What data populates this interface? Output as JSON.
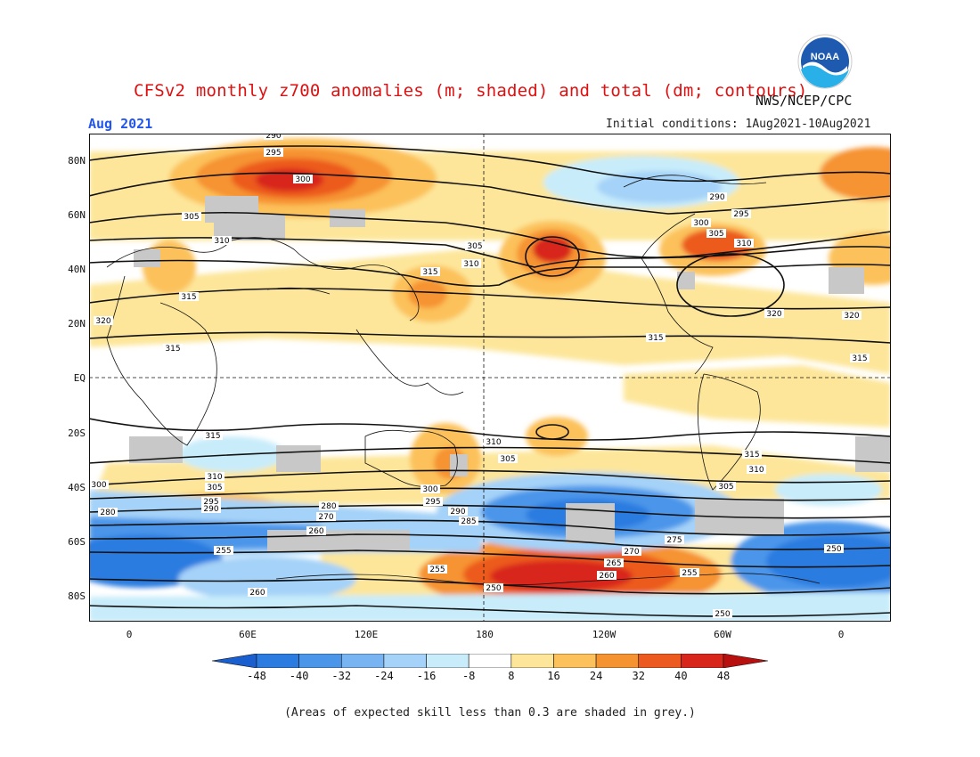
{
  "header": {
    "title": "CFSv2 monthly z700 anomalies (m; shaded) and total (dm; contours)",
    "agency": "NWS/NCEP/CPC",
    "month": "Aug 2021",
    "initial_conditions": "Initial conditions: 1Aug2021-10Aug2021"
  },
  "logo": {
    "text": "NOAA",
    "icon": "noaa-logo-icon"
  },
  "axes": {
    "lat_labels": [
      "80N",
      "60N",
      "40N",
      "20N",
      "EQ",
      "20S",
      "40S",
      "60S",
      "80S"
    ],
    "lon_labels": [
      "0",
      "60E",
      "120E",
      "180",
      "120W",
      "60W",
      "0"
    ]
  },
  "colorbar": {
    "labels": [
      "-48",
      "-40",
      "-32",
      "-24",
      "-16",
      "-8",
      "8",
      "16",
      "24",
      "32",
      "40",
      "48"
    ],
    "colors": [
      "#1a5fd0",
      "#2b7be0",
      "#4c96ea",
      "#78b4f2",
      "#a4d2f8",
      "#c8ecfa",
      "#ffffff",
      "#fde69a",
      "#fcc15a",
      "#f69331",
      "#ec5a1f",
      "#d8261a",
      "#b80f0f"
    ]
  },
  "contours": {
    "labels": [
      "290",
      "295",
      "300",
      "305",
      "310",
      "315",
      "320",
      "305",
      "310",
      "315",
      "320",
      "315",
      "315",
      "315",
      "310",
      "305",
      "300",
      "295",
      "290",
      "285",
      "280",
      "275",
      "270",
      "265",
      "260",
      "255",
      "250",
      "295",
      "290",
      "305",
      "310",
      "300",
      "280",
      "270",
      "260",
      "255",
      "250",
      "260",
      "255",
      "250",
      "305",
      "310",
      "315",
      "320",
      "315",
      "290",
      "295",
      "300",
      "305",
      "310"
    ]
  },
  "footer": {
    "note": "(Areas of expected skill less than 0.3 are shaded in grey.)"
  }
}
